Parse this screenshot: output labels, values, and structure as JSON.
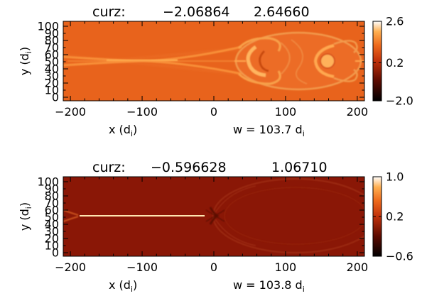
{
  "chart_data": [
    {
      "type": "heatmap",
      "title": "curz:",
      "title_min": "−2.06864",
      "title_max": "2.64660",
      "xlabel": "x (d",
      "xlabel_sub": "i",
      "xlabel_close": ")",
      "ylabel": "y (d",
      "ylabel_sub": "i",
      "ylabel_close": ")",
      "annotation": "w  =  103.7  d",
      "annotation_sub": "i",
      "xlim": [
        -210,
        210
      ],
      "ylim": [
        -5,
        107
      ],
      "xticks": [
        -200,
        -100,
        0,
        100,
        200
      ],
      "xtick_labels": [
        "−200",
        "−100",
        "0",
        "100",
        "200"
      ],
      "yticks": [
        0,
        20,
        40,
        60,
        80,
        100
      ],
      "ytick_labels": [
        "0",
        "20",
        "40",
        "60",
        "80",
        "100"
      ],
      "yticks_minor": [
        10,
        30,
        50,
        70,
        90
      ],
      "yticks_minor_labels": [
        "10",
        "30",
        "50",
        "70",
        "90"
      ],
      "colorbar": {
        "min": -2.0,
        "max": 2.6,
        "tick_values": [
          2.6,
          0.2,
          -2.0
        ],
        "tick_labels": [
          "2.6",
          "0.2",
          "−2.0"
        ]
      },
      "background_value": 0.3,
      "colors": {
        "background": "#e8631c",
        "current_sheet": "#ffa23a",
        "magnetic_island": "#f4a050",
        "island_core": "#ffb25a"
      }
    },
    {
      "type": "heatmap",
      "title": "curz:",
      "title_min": "−0.596628",
      "title_max": "1.06710",
      "xlabel": "x (d",
      "xlabel_sub": "i",
      "xlabel_close": ")",
      "ylabel": "y (d",
      "ylabel_sub": "i",
      "ylabel_close": ")",
      "annotation": "w  =  103.8  d",
      "annotation_sub": "i",
      "xlim": [
        -210,
        210
      ],
      "ylim": [
        -5,
        107
      ],
      "xticks": [
        -200,
        -100,
        0,
        100,
        200
      ],
      "xtick_labels": [
        "−200",
        "−100",
        "0",
        "100",
        "200"
      ],
      "yticks": [
        0,
        20,
        40,
        60,
        80,
        100
      ],
      "ytick_labels": [
        "0",
        "20",
        "40",
        "60",
        "80",
        "100"
      ],
      "yticks_minor": [
        10,
        30,
        50,
        70,
        90
      ],
      "yticks_minor_labels": [
        "10",
        "30",
        "50",
        "70",
        "90"
      ],
      "colorbar": {
        "min": -0.6,
        "max": 1.0,
        "tick_values": [
          1.0,
          0.2,
          -0.6
        ],
        "tick_labels": [
          "1.0",
          "0.2",
          "−0.6"
        ]
      },
      "background_value": 0.0,
      "colors": {
        "background": "#8a1706",
        "current_sheet": "#ffe6b0",
        "magnetic_island": "#a83a1a"
      }
    }
  ]
}
